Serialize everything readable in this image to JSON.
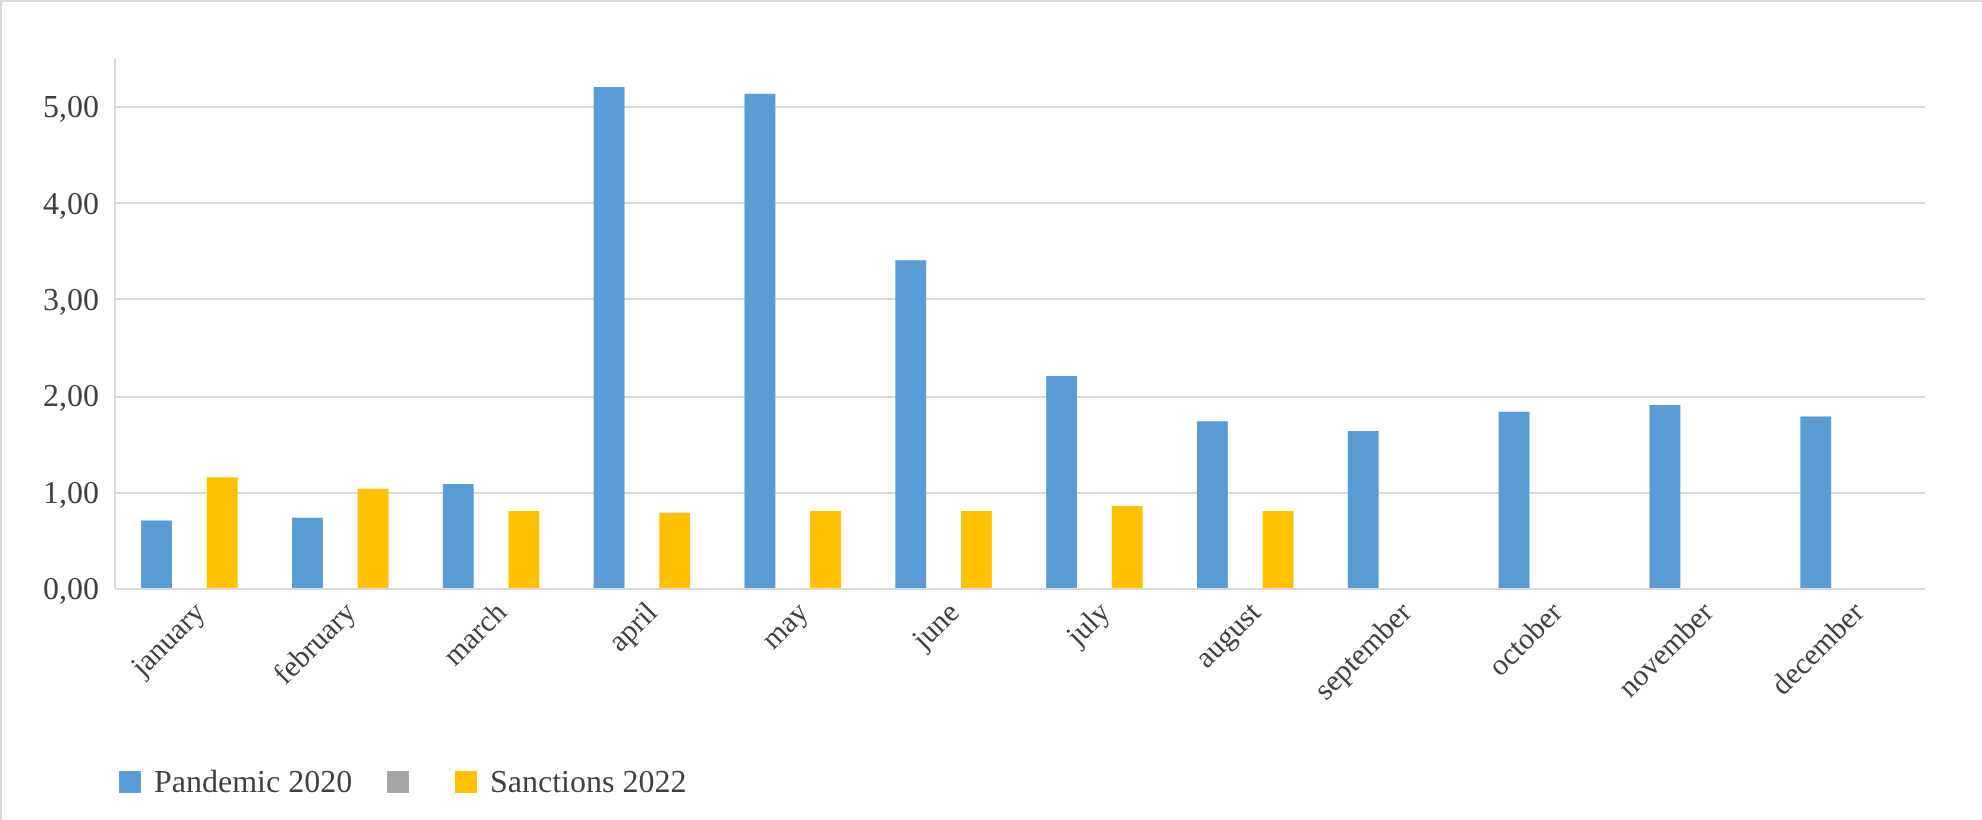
{
  "chart_data": {
    "type": "bar",
    "categories": [
      "january",
      "february",
      "march",
      "april",
      "may",
      "june",
      "july",
      "august",
      "september",
      "october",
      "november",
      "december"
    ],
    "series": [
      {
        "name": "Pandemic 2020",
        "color": "#5b9bd5",
        "values": [
          0.7,
          0.73,
          1.08,
          5.2,
          5.13,
          3.4,
          2.2,
          1.73,
          1.63,
          1.83,
          1.9,
          1.78
        ]
      },
      {
        "color": "#a5a5a5",
        "values": [
          null,
          null,
          null,
          null,
          null,
          null,
          null,
          null,
          null,
          null,
          null,
          null
        ]
      },
      {
        "name": "Sanctions 2022",
        "color": "#ffc000",
        "values": [
          1.15,
          1.03,
          0.8,
          0.78,
          0.8,
          0.8,
          0.85,
          0.8,
          null,
          null,
          null,
          null
        ]
      }
    ],
    "ylim": [
      0,
      5.5
    ],
    "yticks": [
      {
        "value": 0,
        "label": "0,00"
      },
      {
        "value": 1,
        "label": "1,00"
      },
      {
        "value": 2,
        "label": "2,00"
      },
      {
        "value": 3,
        "label": "3,00"
      },
      {
        "value": 4,
        "label": "4,00"
      },
      {
        "value": 5,
        "label": "5,00"
      }
    ],
    "grid": "y",
    "legend": "bottom"
  }
}
